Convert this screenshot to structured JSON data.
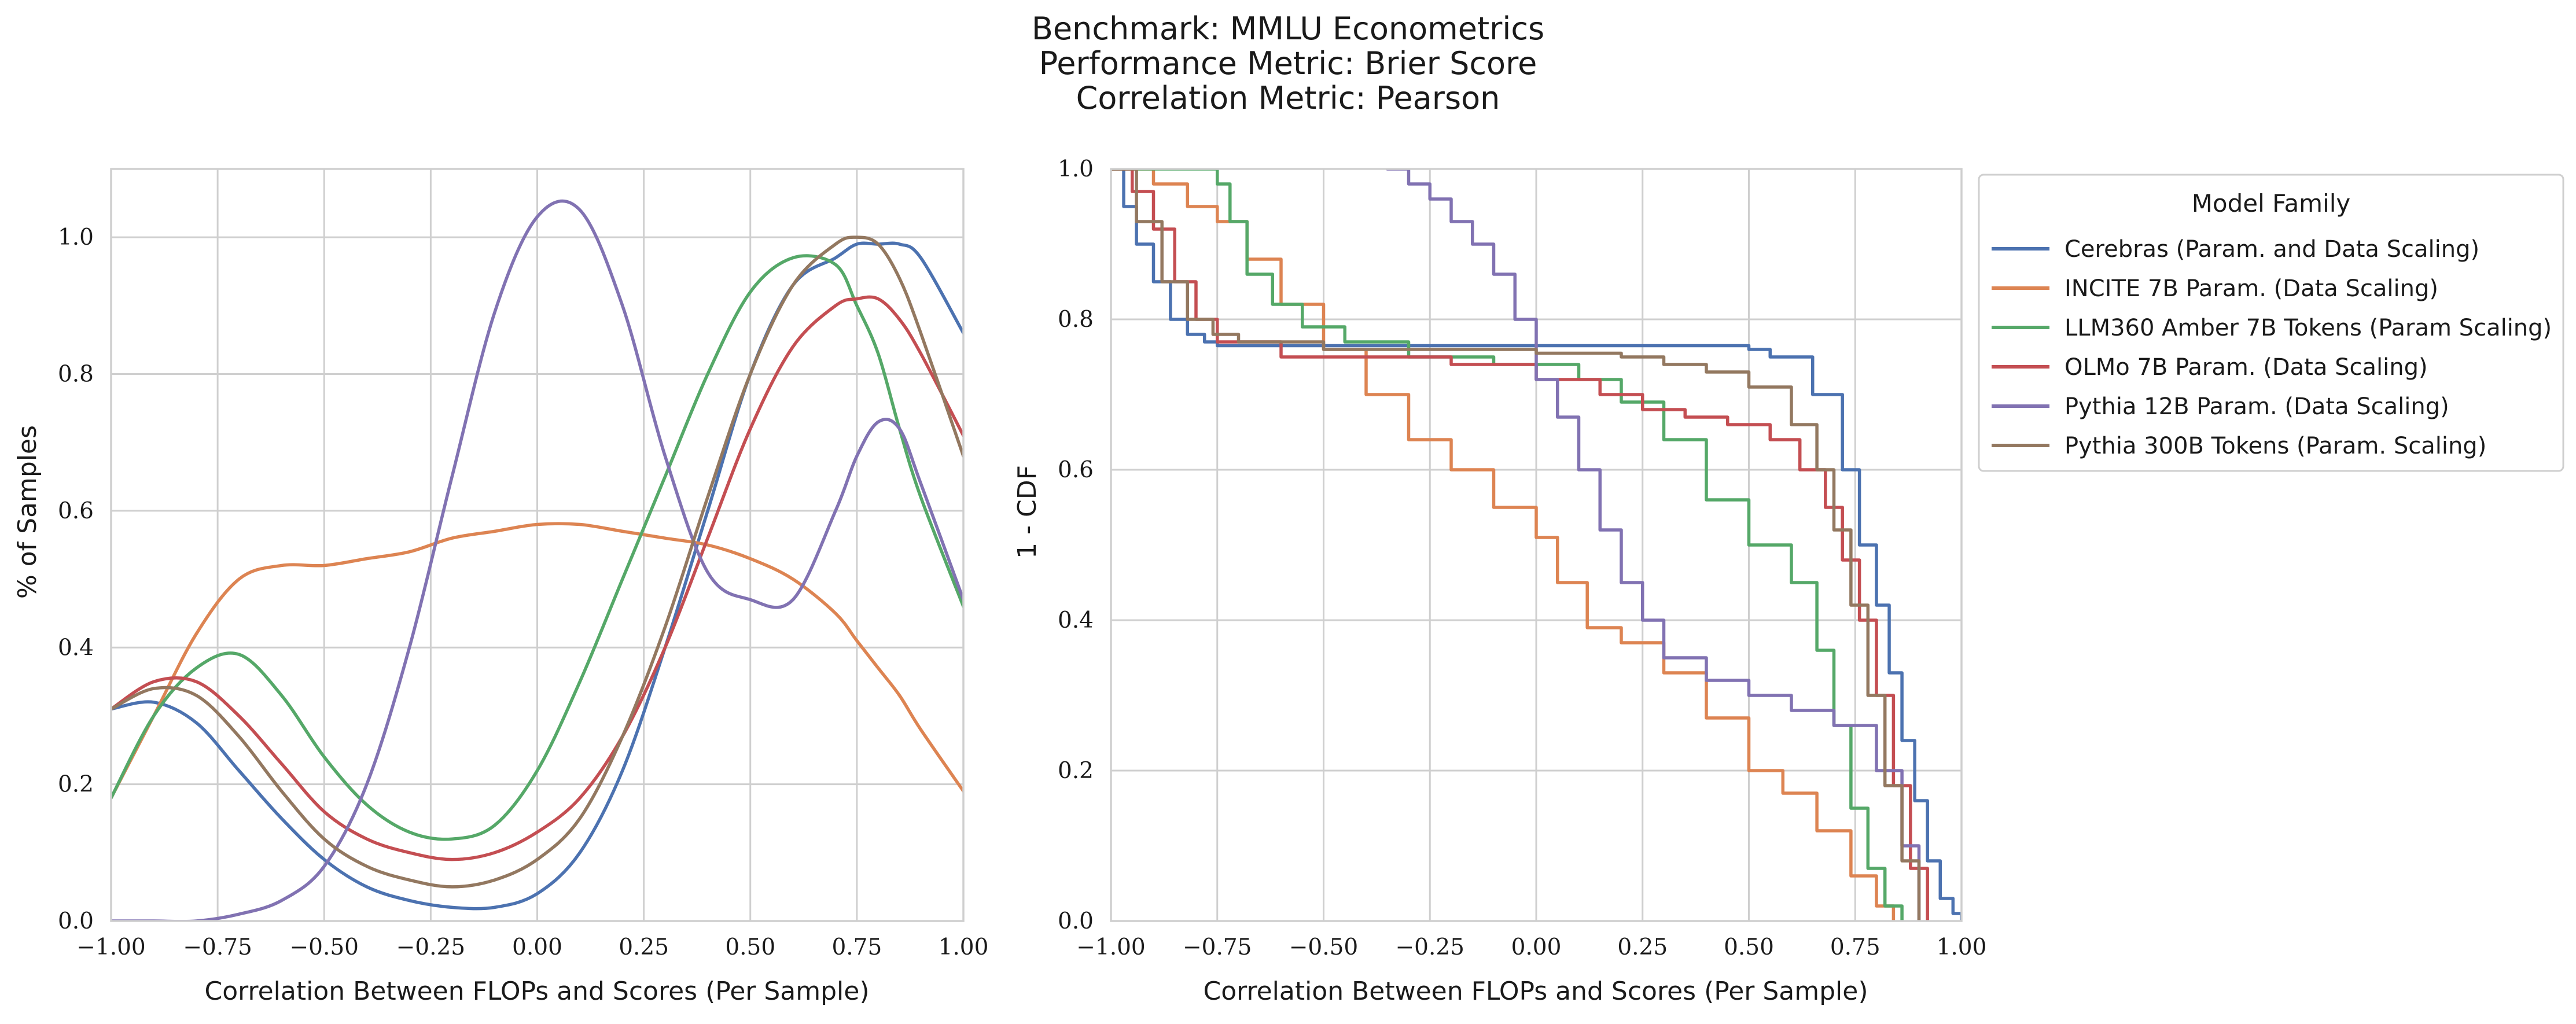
{
  "figure": {
    "title_lines": [
      "Benchmark: MMLU Econometrics",
      "Performance Metric: Brier Score",
      "Correlation Metric: Pearson"
    ]
  },
  "chart_data": [
    {
      "type": "line",
      "subtype": "kde",
      "xlabel": "Correlation Between FLOPs and Scores (Per Sample)",
      "ylabel": "% of Samples",
      "xlim": [
        -1.0,
        1.0
      ],
      "ylim": [
        0.0,
        1.1
      ],
      "xticks": [
        "−1.00",
        "−0.75",
        "−0.50",
        "−0.25",
        "0.00",
        "0.25",
        "0.50",
        "0.75",
        "1.00"
      ],
      "yticks": [
        "0.0",
        "0.2",
        "0.4",
        "0.6",
        "0.8",
        "1.0"
      ],
      "grid": true,
      "x": [
        -1.0,
        -0.9,
        -0.8,
        -0.7,
        -0.6,
        -0.5,
        -0.4,
        -0.3,
        -0.2,
        -0.1,
        0.0,
        0.1,
        0.2,
        0.3,
        0.4,
        0.5,
        0.6,
        0.7,
        0.75,
        0.8,
        0.85,
        0.9,
        1.0
      ],
      "series": [
        {
          "name": "Cerebras (Param. and Data Scaling)",
          "color": "#4c72b0",
          "values": [
            0.31,
            0.32,
            0.29,
            0.22,
            0.15,
            0.09,
            0.05,
            0.03,
            0.02,
            0.02,
            0.04,
            0.1,
            0.22,
            0.4,
            0.6,
            0.8,
            0.93,
            0.97,
            0.99,
            0.99,
            0.99,
            0.97,
            0.86
          ]
        },
        {
          "name": "INCITE 7B Param. (Data Scaling)",
          "color": "#dd8452",
          "values": [
            0.18,
            0.3,
            0.42,
            0.5,
            0.52,
            0.52,
            0.53,
            0.54,
            0.56,
            0.57,
            0.58,
            0.58,
            0.57,
            0.56,
            0.55,
            0.53,
            0.5,
            0.45,
            0.41,
            0.37,
            0.33,
            0.28,
            0.19
          ]
        },
        {
          "name": "LLM360 Amber 7B Tokens (Param Scaling)",
          "color": "#55a868",
          "values": [
            0.18,
            0.3,
            0.37,
            0.39,
            0.33,
            0.24,
            0.17,
            0.13,
            0.12,
            0.14,
            0.22,
            0.35,
            0.5,
            0.65,
            0.8,
            0.92,
            0.97,
            0.96,
            0.9,
            0.83,
            0.72,
            0.62,
            0.46
          ]
        },
        {
          "name": "OLMo 7B Param. (Data Scaling)",
          "color": "#c44e52",
          "values": [
            0.31,
            0.35,
            0.35,
            0.3,
            0.23,
            0.16,
            0.12,
            0.1,
            0.09,
            0.1,
            0.13,
            0.18,
            0.27,
            0.4,
            0.56,
            0.72,
            0.84,
            0.9,
            0.91,
            0.91,
            0.88,
            0.83,
            0.71
          ]
        },
        {
          "name": "Pythia 12B Param. (Data Scaling)",
          "color": "#8172b2",
          "values": [
            0.0,
            0.0,
            0.0,
            0.01,
            0.03,
            0.08,
            0.2,
            0.4,
            0.65,
            0.89,
            1.03,
            1.04,
            0.9,
            0.68,
            0.51,
            0.47,
            0.47,
            0.6,
            0.68,
            0.73,
            0.72,
            0.64,
            0.47
          ]
        },
        {
          "name": "Pythia 300B Tokens (Param. Scaling)",
          "color": "#937860",
          "values": [
            0.31,
            0.34,
            0.33,
            0.27,
            0.19,
            0.12,
            0.08,
            0.06,
            0.05,
            0.06,
            0.09,
            0.15,
            0.27,
            0.43,
            0.62,
            0.8,
            0.93,
            0.99,
            1.0,
            0.99,
            0.94,
            0.86,
            0.68
          ]
        }
      ]
    },
    {
      "type": "line",
      "subtype": "step",
      "xlabel": "Correlation Between FLOPs and Scores (Per Sample)",
      "ylabel": "1 - CDF",
      "xlim": [
        -1.0,
        1.0
      ],
      "ylim": [
        0.0,
        1.0
      ],
      "xticks": [
        "−1.00",
        "−0.75",
        "−0.50",
        "−0.25",
        "0.00",
        "0.25",
        "0.50",
        "0.75",
        "1.00"
      ],
      "yticks": [
        "0.0",
        "0.2",
        "0.4",
        "0.6",
        "0.8",
        "1.0"
      ],
      "grid": true,
      "legend": {
        "title": "Model Family",
        "placement": "outside right, top"
      },
      "series": [
        {
          "name": "Cerebras (Param. and Data Scaling)",
          "color": "#4c72b0",
          "x": [
            -1.0,
            -0.97,
            -0.94,
            -0.9,
            -0.86,
            -0.82,
            -0.78,
            -0.75,
            0.3,
            0.5,
            0.55,
            0.65,
            0.72,
            0.76,
            0.8,
            0.83,
            0.86,
            0.89,
            0.92,
            0.95,
            0.98,
            1.0
          ],
          "y": [
            1.0,
            0.95,
            0.9,
            0.85,
            0.8,
            0.78,
            0.77,
            0.765,
            0.765,
            0.76,
            0.75,
            0.7,
            0.6,
            0.5,
            0.42,
            0.33,
            0.24,
            0.16,
            0.08,
            0.03,
            0.01,
            0.0
          ]
        },
        {
          "name": "INCITE 7B Param. (Data Scaling)",
          "color": "#dd8452",
          "x": [
            -1.0,
            -0.95,
            -0.9,
            -0.82,
            -0.75,
            -0.68,
            -0.6,
            -0.5,
            -0.4,
            -0.3,
            -0.2,
            -0.1,
            0.0,
            0.05,
            0.12,
            0.2,
            0.3,
            0.4,
            0.5,
            0.58,
            0.66,
            0.74,
            0.8,
            0.84
          ],
          "y": [
            1.0,
            1.0,
            0.98,
            0.95,
            0.93,
            0.88,
            0.82,
            0.76,
            0.7,
            0.64,
            0.6,
            0.55,
            0.51,
            0.45,
            0.39,
            0.37,
            0.33,
            0.27,
            0.2,
            0.17,
            0.12,
            0.06,
            0.02,
            0.0
          ]
        },
        {
          "name": "LLM360 Amber 7B Tokens (Param Scaling)",
          "color": "#55a868",
          "x": [
            -1.0,
            -0.8,
            -0.75,
            -0.72,
            -0.68,
            -0.62,
            -0.55,
            -0.45,
            -0.3,
            -0.1,
            0.1,
            0.2,
            0.3,
            0.4,
            0.5,
            0.6,
            0.66,
            0.7,
            0.74,
            0.78,
            0.82,
            0.86
          ],
          "y": [
            1.0,
            1.0,
            0.98,
            0.93,
            0.86,
            0.82,
            0.79,
            0.77,
            0.75,
            0.74,
            0.72,
            0.69,
            0.64,
            0.56,
            0.5,
            0.45,
            0.36,
            0.26,
            0.15,
            0.07,
            0.02,
            0.0
          ]
        },
        {
          "name": "OLMo 7B Param. (Data Scaling)",
          "color": "#c44e52",
          "x": [
            -1.0,
            -0.95,
            -0.9,
            -0.85,
            -0.8,
            -0.75,
            -0.6,
            -0.2,
            0.0,
            0.15,
            0.25,
            0.35,
            0.45,
            0.55,
            0.62,
            0.68,
            0.72,
            0.76,
            0.8,
            0.84,
            0.88,
            0.92
          ],
          "y": [
            1.0,
            0.97,
            0.92,
            0.85,
            0.8,
            0.77,
            0.75,
            0.74,
            0.72,
            0.7,
            0.68,
            0.67,
            0.66,
            0.64,
            0.6,
            0.55,
            0.48,
            0.4,
            0.3,
            0.18,
            0.07,
            0.0
          ]
        },
        {
          "name": "Pythia 12B Param. (Data Scaling)",
          "color": "#8172b2",
          "x": [
            -0.35,
            -0.3,
            -0.25,
            -0.2,
            -0.15,
            -0.1,
            -0.05,
            0.0,
            0.05,
            0.1,
            0.15,
            0.2,
            0.25,
            0.3,
            0.4,
            0.5,
            0.6,
            0.7,
            0.8,
            0.86,
            0.9
          ],
          "y": [
            1.0,
            0.98,
            0.96,
            0.93,
            0.9,
            0.86,
            0.8,
            0.72,
            0.67,
            0.6,
            0.52,
            0.45,
            0.4,
            0.35,
            0.32,
            0.3,
            0.28,
            0.26,
            0.2,
            0.1,
            0.0
          ]
        },
        {
          "name": "Pythia 300B Tokens (Param. Scaling)",
          "color": "#937860",
          "x": [
            -1.0,
            -0.94,
            -0.88,
            -0.82,
            -0.76,
            -0.7,
            -0.65,
            -0.5,
            -0.2,
            0.0,
            0.2,
            0.3,
            0.4,
            0.5,
            0.6,
            0.66,
            0.7,
            0.74,
            0.78,
            0.82,
            0.86,
            0.9
          ],
          "y": [
            1.0,
            0.93,
            0.85,
            0.8,
            0.78,
            0.77,
            0.77,
            0.76,
            0.76,
            0.755,
            0.75,
            0.74,
            0.73,
            0.71,
            0.66,
            0.6,
            0.52,
            0.42,
            0.3,
            0.18,
            0.08,
            0.0
          ]
        }
      ]
    }
  ]
}
